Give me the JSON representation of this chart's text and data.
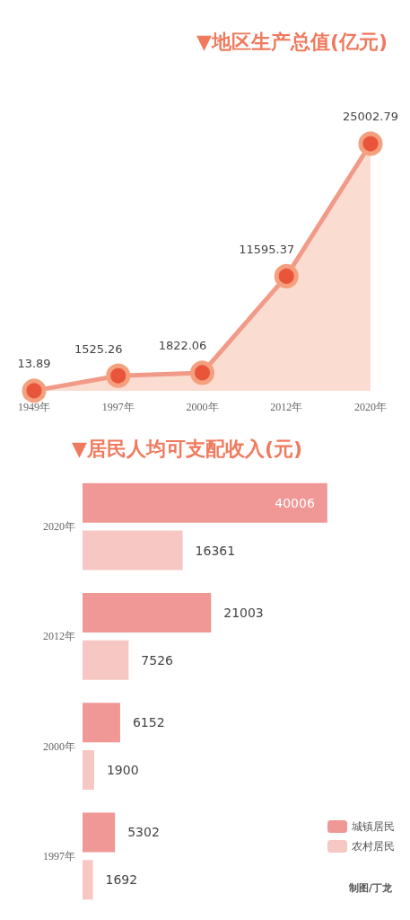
{
  "chart_data": [
    {
      "type": "area",
      "title": "▼地区生产总值(亿元)",
      "categories": [
        "1949年",
        "1997年",
        "2000年",
        "2012年",
        "2020年"
      ],
      "series": [
        {
          "color": "#f29a88",
          "values": [
            13.89,
            1525.26,
            1822.06,
            11595.37,
            25002.79
          ]
        }
      ],
      "data_labels": true,
      "marker": "circle",
      "grid": false,
      "legend": false,
      "tick_labels": "x"
    },
    {
      "type": "bar",
      "orientation": "horizontal",
      "title": "▼居民人均可支配收入(元)",
      "categories": [
        "2020年",
        "2012年",
        "2000年",
        "1997年"
      ],
      "series": [
        {
          "name": "城镇居民",
          "color": "#ef9896",
          "values": [
            40006,
            21003,
            6152,
            5302
          ]
        },
        {
          "name": "农村居民",
          "color": "#f7c8c3",
          "values": [
            16361,
            7526,
            1900,
            1692
          ]
        }
      ],
      "data_labels": true,
      "grid": false,
      "legend": "bottom right",
      "tick_labels": "y",
      "annotations": [
        "制图/丁龙"
      ]
    }
  ]
}
